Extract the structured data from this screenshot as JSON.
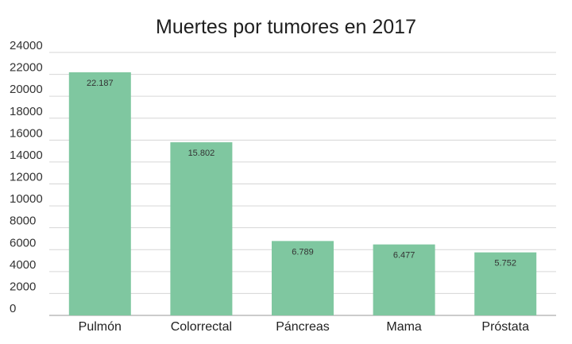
{
  "chart_data": {
    "type": "bar",
    "title": "Muertes por tumores en 2017",
    "categories": [
      "Pulmón",
      "Colorrectal",
      "Páncreas",
      "Mama",
      "Próstata"
    ],
    "values": [
      22187,
      15802,
      6789,
      6477,
      5752
    ],
    "data_labels": [
      "22.187",
      "15.802",
      "6.789",
      "6.477",
      "5.752"
    ],
    "yticks": [
      0,
      2000,
      4000,
      6000,
      8000,
      10000,
      12000,
      14000,
      16000,
      18000,
      20000,
      22000,
      24000
    ],
    "ylim": [
      0,
      24000
    ],
    "grid": true,
    "legend": "none",
    "colors": {
      "bar": "#7fc7a0",
      "grid": "#d6d6d6",
      "axis": "#9a9a9a"
    }
  }
}
